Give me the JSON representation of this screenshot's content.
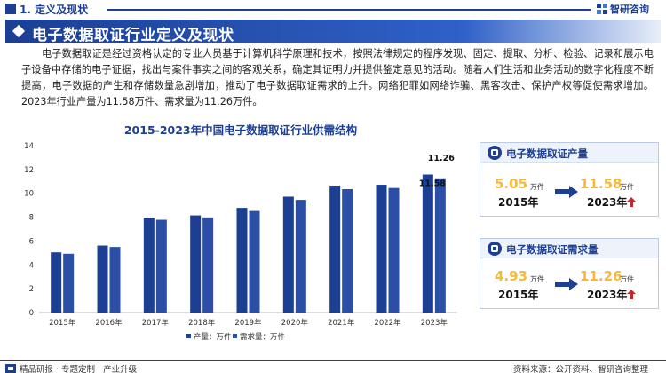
{
  "header": {
    "section": "1. 定义及现状",
    "logo": "智研咨询"
  },
  "banner": {
    "title": "电子数据取证行业定义及现状"
  },
  "paragraph": "电子数据取证是经过资格认定的专业人员基于计算机科学原理和技术，按照法律规定的程序发现、固定、提取、分析、检验、记录和展示电子设备中存储的电子证据，找出与案件事实之间的客观关系，确定其证明力并提供鉴定意见的活动。随着人们生活和业务活动的数字化程度不断提高，电子数据的产生和存储数量急剧增加，推动了电子数据取证需求的上升。网络犯罪如网络诈骗、黑客攻击、保护产权等促使需求增加。2023年行业产量为11.58万件、需求量为11.26万件。",
  "chart_data": {
    "type": "bar",
    "title": "2015-2023年中国电子数据取证行业供需结构",
    "categories": [
      "2015年",
      "2016年",
      "2017年",
      "2018年",
      "2019年",
      "2020年",
      "2021年",
      "2022年",
      "2023年"
    ],
    "series": [
      {
        "name": "产量：万件",
        "color": "#1c3f94",
        "values": [
          5.05,
          5.62,
          7.95,
          8.15,
          8.78,
          9.72,
          10.65,
          10.72,
          11.58
        ]
      },
      {
        "name": "需求量：万件",
        "color": "#2b4fa6",
        "values": [
          4.93,
          5.5,
          7.78,
          7.98,
          8.52,
          9.45,
          10.35,
          10.45,
          11.26
        ]
      }
    ],
    "ylim": [
      0,
      14
    ],
    "yticks": [
      0,
      2,
      4,
      6,
      8,
      10,
      12,
      14
    ],
    "data_labels": [
      {
        "series": 0,
        "category": "2023年",
        "text": "11.58"
      },
      {
        "series": 1,
        "category": "2023年",
        "text": "11.26"
      }
    ],
    "grid": false,
    "legend_position": "bottom"
  },
  "cards": [
    {
      "title": "电子数据取证产量",
      "from_value": "5.05",
      "from_unit": "万件",
      "from_year": "2015年",
      "to_value": "11.58",
      "to_unit": "万件",
      "to_year": "2023年"
    },
    {
      "title": "电子数据取证需求量",
      "from_value": "4.93",
      "from_unit": "万件",
      "from_year": "2015年",
      "to_value": "11.26",
      "to_unit": "万件",
      "to_year": "2023年"
    }
  ],
  "footer": {
    "left": "精品研报 · 专题定制 · 产业升级",
    "right": "资料来源：公开资料、智研咨询整理"
  },
  "colors": {
    "brand": "#1c3f94",
    "highlight": "#f6b93b",
    "trend_up": "#c0282d"
  }
}
